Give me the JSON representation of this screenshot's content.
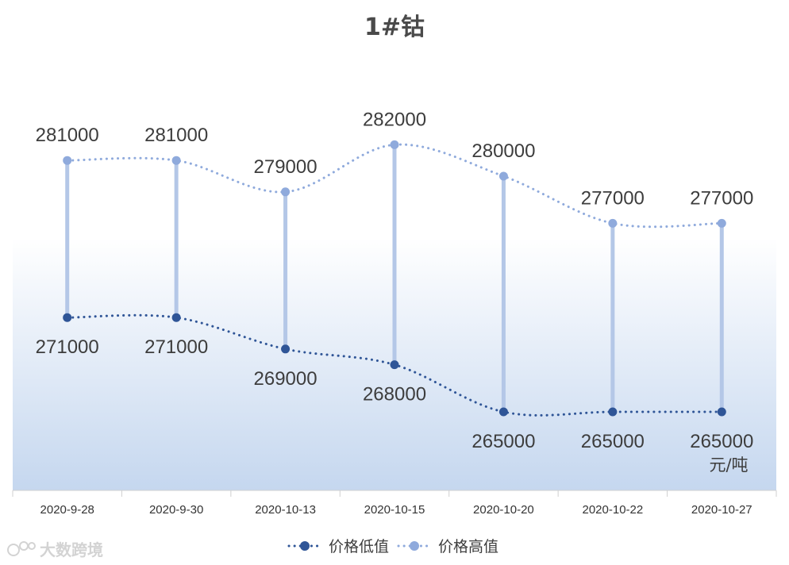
{
  "chart_data": {
    "type": "line",
    "title": "1#钴",
    "unit": "元/吨",
    "categories": [
      "2020-9-28",
      "2020-9-30",
      "2020-10-13",
      "2020-10-15",
      "2020-10-20",
      "2020-10-22",
      "2020-10-27"
    ],
    "series": [
      {
        "name": "价格低值",
        "values": [
          271000,
          271000,
          269000,
          268000,
          265000,
          265000,
          265000
        ],
        "color": "#2f5597"
      },
      {
        "name": "价格高值",
        "values": [
          281000,
          281000,
          279000,
          282000,
          280000,
          277000,
          277000
        ],
        "color": "#8faadc"
      }
    ],
    "high_low_lines": true,
    "high_low_color": "#b4c7e7",
    "background_gradient": [
      "#ffffff",
      "#c5d7ef"
    ],
    "legend_position": "bottom",
    "grid": false
  },
  "watermark": "大数跨境"
}
